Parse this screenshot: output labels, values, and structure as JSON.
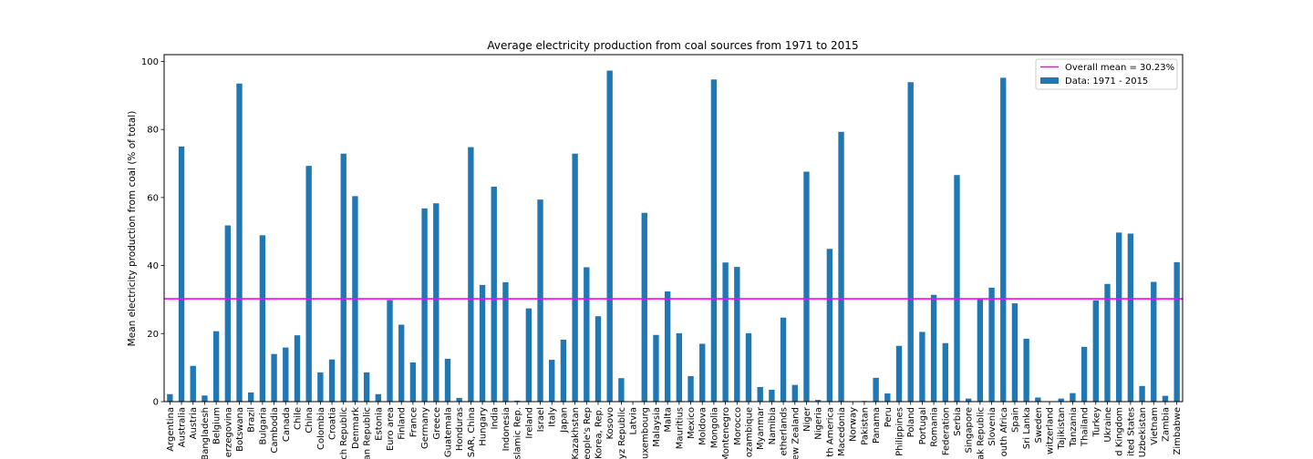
{
  "chart_data": {
    "type": "bar",
    "title": "Average electricity production from coal sources from 1971 to 2015",
    "xlabel": "",
    "ylabel": "Mean electricity production from coal (% of total)",
    "ylim": [
      0,
      102
    ],
    "yticks": [
      0,
      20,
      40,
      60,
      80,
      100
    ],
    "bar_color": "#1f77b4",
    "mean_line_color": "#ff00ff",
    "legend": {
      "location": "top-right",
      "mean_label": "Overall mean = 30.23%",
      "bar_label": "Data: 1971 - 2015"
    },
    "overall_mean": 30.23,
    "categories": [
      "Argentina",
      "Australia",
      "Austria",
      "Bangladesh",
      "Belgium",
      "Bosnia and Herzegovina",
      "Botswana",
      "Brazil",
      "Bulgaria",
      "Cambodia",
      "Canada",
      "Chile",
      "China",
      "Colombia",
      "Croatia",
      "Czech Republic",
      "Denmark",
      "Dominican Republic",
      "Estonia",
      "Euro area",
      "Finland",
      "France",
      "Germany",
      "Greece",
      "Guatemala",
      "Honduras",
      "Hong Kong SAR, China",
      "Hungary",
      "India",
      "Indonesia",
      "Iran, Islamic Rep.",
      "Ireland",
      "Israel",
      "Italy",
      "Japan",
      "Kazakhstan",
      "Korea, Dem. People's Rep",
      "Korea, Rep.",
      "Kosovo",
      "Kyrgyz Republic",
      "Latvia",
      "Luxembourg",
      "Malaysia",
      "Malta",
      "Mauritius",
      "Mexico",
      "Moldova",
      "Mongolia",
      "Montenegro",
      "Morocco",
      "Mozambique",
      "Myanmar",
      "Namibia",
      "Netherlands",
      "New Zealand",
      "Niger",
      "Nigeria",
      "North America",
      "North Macedonia",
      "Norway",
      "Pakistan",
      "Panama",
      "Peru",
      "Philippines",
      "Poland",
      "Portugal",
      "Romania",
      "Russian Federation",
      "Serbia",
      "Singapore",
      "Slovak Republic",
      "Slovenia",
      "South Africa",
      "Spain",
      "Sri Lanka",
      "Sweden",
      "Switzerland",
      "Tajikistan",
      "Tanzania",
      "Thailand",
      "Turkey",
      "Ukraine",
      "United Kingdom",
      "United States",
      "Uzbekistan",
      "Vietnam",
      "Zambia",
      "Zimbabwe"
    ],
    "tick_labels": [
      "Argentina",
      "Australia",
      "Austria",
      "Bangladesh",
      "Belgium",
      "erzegovina",
      "Botswana",
      "Brazil",
      "Bulgaria",
      "Cambodia",
      "Canada",
      "Chile",
      "China",
      "Colombia",
      "Croatia",
      "ch Republic",
      "Denmark",
      "an Republic",
      "Estonia",
      "Euro area",
      "Finland",
      "France",
      "Germany",
      "Greece",
      "Guatemala",
      "Honduras",
      "SAR, China",
      "Hungary",
      "India",
      "Indonesia",
      "slamic Rep.",
      "Ireland",
      "Israel",
      "Italy",
      "Japan",
      "Kazakhstan",
      "eople's Rep",
      "Korea, Rep.",
      "Kosovo",
      "yz Republic",
      "Latvia",
      "uxembourg",
      "Malaysia",
      "Malta",
      "Mauritius",
      "Mexico",
      "Moldova",
      "Mongolia",
      "Montenegro",
      "Morocco",
      "ozambique",
      "Myanmar",
      "Namibia",
      "etherlands",
      "ew Zealand",
      "Niger",
      "Nigeria",
      "th America",
      "Macedonia",
      "Norway",
      "Pakistan",
      "Panama",
      "Peru",
      "Philippines",
      "Poland",
      "Portugal",
      "Romania",
      "Federation",
      "Serbia",
      "Singapore",
      "ak Republic",
      "Slovenia",
      "outh Africa",
      "Spain",
      "Sri Lanka",
      "Sweden",
      "witzerland",
      "Tajikistan",
      "Tanzania",
      "Thailand",
      "Turkey",
      "Ukraine",
      "d Kingdom",
      "ited States",
      "Uzbekistan",
      "Vietnam",
      "Zambia",
      "Zimbabwe"
    ],
    "values": [
      2.2,
      75.0,
      10.5,
      1.8,
      20.7,
      51.8,
      93.5,
      2.7,
      48.9,
      14.0,
      15.9,
      19.5,
      69.3,
      8.6,
      12.4,
      72.9,
      60.4,
      8.6,
      2.2,
      29.9,
      22.6,
      11.5,
      56.8,
      58.3,
      12.6,
      1.1,
      74.8,
      34.3,
      63.2,
      35.1,
      0.3,
      27.4,
      59.4,
      12.3,
      18.2,
      72.9,
      39.5,
      25.1,
      97.3,
      6.9,
      0.0,
      55.5,
      19.6,
      32.4,
      20.1,
      7.5,
      17.0,
      94.7,
      40.9,
      39.6,
      20.1,
      4.3,
      3.5,
      24.7,
      4.9,
      67.6,
      0.5,
      44.9,
      79.3,
      0.0,
      0.2,
      7.0,
      2.4,
      16.4,
      93.9,
      20.5,
      31.4,
      17.2,
      66.6,
      0.9,
      30.1,
      33.5,
      95.2,
      28.9,
      18.5,
      1.2,
      0.0,
      0.9,
      2.5,
      16.1,
      29.8,
      34.6,
      49.7,
      49.4,
      4.6,
      35.2,
      1.7,
      41.0
    ]
  }
}
